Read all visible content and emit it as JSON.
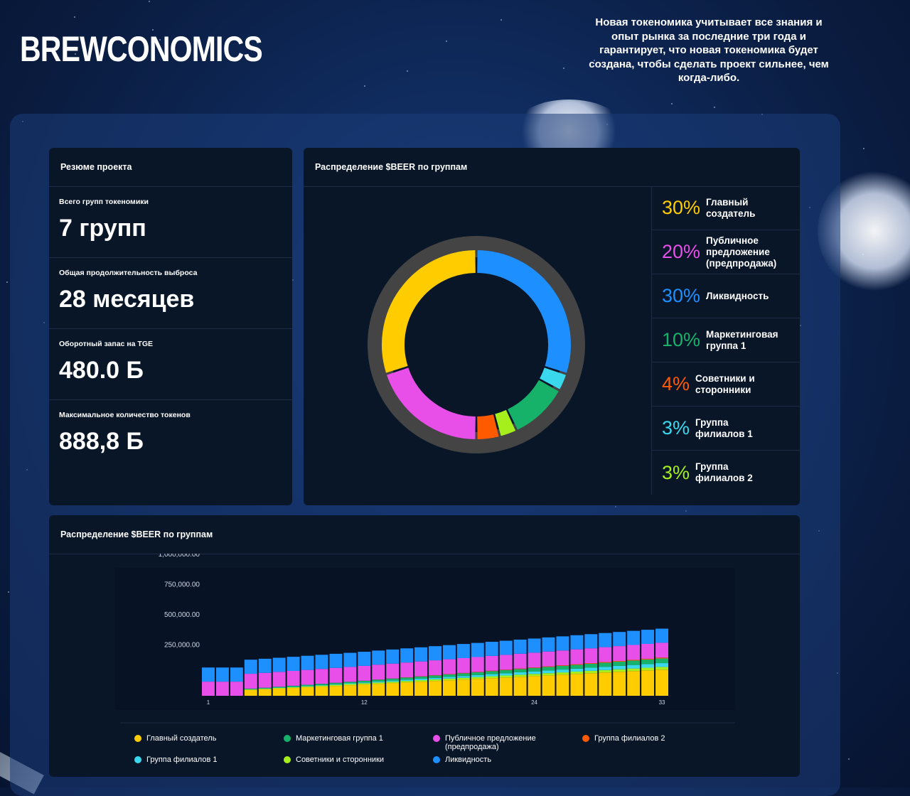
{
  "brand": {
    "logo": "BREWCONOMICS"
  },
  "tagline": "Новая токеномика учитывает все знания и опыт рынка за последние три года и гарантирует, что новая токеномика будет создана, чтобы сделать проект сильнее, чем когда-либо.",
  "summary": {
    "title": "Резюме проекта",
    "stats": [
      {
        "label": "Всего групп токеномики",
        "value": "7 групп"
      },
      {
        "label": "Общая продолжительность выброса",
        "value": "28 месяцев"
      },
      {
        "label": "Оборотный запас на TGE",
        "value": "480.0 Б"
      },
      {
        "label": "Максимальное количество токенов",
        "value": "888,8 Б"
      }
    ]
  },
  "distribution": {
    "title": "Распределение $BEER по группам",
    "groups": [
      {
        "pct": "30%",
        "name": "Главный создатель",
        "color": "#ffcc00"
      },
      {
        "pct": "20%",
        "name": "Публичное предложение (предпродажа)",
        "color": "#e84fe8"
      },
      {
        "pct": "30%",
        "name": "Ликвидность",
        "color": "#1e8fff"
      },
      {
        "pct": "10%",
        "name": "Маркетинговая группа 1",
        "color": "#17b26a"
      },
      {
        "pct": "4%",
        "name": "Советники и сторонники",
        "color": "#ff5a00"
      },
      {
        "pct": "3%",
        "name": "Группа филиалов 1",
        "color": "#3ad8ec"
      },
      {
        "pct": "3%",
        "name": "Группа филиалов 2",
        "color": "#a6ee1c"
      }
    ]
  },
  "bar_card": {
    "title": "Распределение $BEER по группам"
  },
  "bottom_legend": [
    {
      "name": "Главный создатель",
      "color": "#ffcc00"
    },
    {
      "name": "Маркетинговая группа 1",
      "color": "#17b26a"
    },
    {
      "name": "Публичное предложение (предпродажа)",
      "color": "#e84fe8"
    },
    {
      "name": "Группа филиалов 2",
      "color": "#ff5a00"
    },
    {
      "name": "Группа филиалов 1",
      "color": "#3ad8ec"
    },
    {
      "name": "Советники и сторонники",
      "color": "#a6ee1c"
    },
    {
      "name": "Ликвидность",
      "color": "#1e8fff"
    }
  ],
  "chart_data": [
    {
      "type": "pie",
      "variant": "donut",
      "slices": [
        {
          "label": "Ликвидность",
          "value": 30,
          "color": "#1e8fff"
        },
        {
          "label": "Группа филиалов 1",
          "value": 3,
          "color": "#3ad8ec"
        },
        {
          "label": "Маркетинговая группа 1",
          "value": 10,
          "color": "#17b26a"
        },
        {
          "label": "Группа филиалов 2",
          "value": 3,
          "color": "#a6ee1c"
        },
        {
          "label": "Советники и сторонники",
          "value": 4,
          "color": "#ff5a00"
        },
        {
          "label": "Публичное предложение (предпродажа)",
          "value": 20,
          "color": "#e84fe8"
        },
        {
          "label": "Главный создатель",
          "value": 30,
          "color": "#ffcc00"
        }
      ]
    },
    {
      "type": "bar",
      "stacked": true,
      "x": [
        1,
        2,
        3,
        4,
        5,
        6,
        7,
        8,
        9,
        10,
        11,
        12,
        13,
        14,
        15,
        16,
        17,
        18,
        19,
        20,
        21,
        22,
        23,
        24,
        25,
        26,
        27,
        28,
        29,
        30,
        31,
        32,
        33
      ],
      "xticks": [
        "1",
        "12",
        "24",
        "33"
      ],
      "yticks": [
        "250,000.00",
        "500,000.00",
        "750,000.00",
        "1,000,000.00"
      ],
      "ylim": [
        0,
        1000000
      ],
      "series": [
        {
          "name": "Главный создатель",
          "color": "#ffcc00",
          "values": [
            0,
            0,
            0,
            80000,
            90000,
            100000,
            110000,
            120000,
            130000,
            140000,
            150000,
            160000,
            170000,
            180000,
            190000,
            200000,
            210000,
            220000,
            230000,
            240000,
            250000,
            260000,
            270000,
            280000,
            290000,
            300000,
            310000,
            320000,
            330000,
            340000,
            350000,
            360000,
            370000
          ]
        },
        {
          "name": "Советники и сторонники",
          "color": "#a6ee1c",
          "values": [
            0,
            0,
            0,
            10000,
            10000,
            11000,
            12000,
            13000,
            14000,
            15000,
            16000,
            17000,
            18000,
            19000,
            20000,
            21000,
            22000,
            23000,
            24000,
            25000,
            26000,
            27000,
            28000,
            29000,
            30000,
            31000,
            32000,
            33000,
            34000,
            35000,
            36000,
            37000,
            38000
          ]
        },
        {
          "name": "Группа филиалов 1",
          "color": "#3ad8ec",
          "values": [
            0,
            0,
            0,
            3000,
            4000,
            5000,
            6000,
            7000,
            8000,
            9000,
            10000,
            12000,
            14000,
            16000,
            18000,
            20000,
            22000,
            24000,
            26000,
            28000,
            30000,
            32000,
            34000,
            36000,
            38000,
            40000,
            42000,
            44000,
            46000,
            48000,
            50000,
            52000,
            54000
          ]
        },
        {
          "name": "Маркетинговая группа 1",
          "color": "#17b26a",
          "values": [
            0,
            0,
            0,
            8000,
            10000,
            12000,
            14000,
            16000,
            18000,
            20000,
            22000,
            24000,
            26000,
            28000,
            30000,
            32000,
            34000,
            36000,
            38000,
            40000,
            42000,
            44000,
            46000,
            48000,
            50000,
            52000,
            54000,
            56000,
            58000,
            60000,
            62000,
            64000,
            66000
          ]
        },
        {
          "name": "Группа филиалов 2",
          "color": "#ff5a00",
          "values": [
            0,
            0,
            0,
            0,
            0,
            0,
            0,
            0,
            0,
            0,
            0,
            0,
            2000,
            2000,
            3000,
            3000,
            4000,
            4000,
            5000,
            5000,
            6000,
            6000,
            7000,
            7000,
            8000,
            8000,
            9000,
            9000,
            10000,
            10000,
            11000,
            11000,
            12000
          ]
        },
        {
          "name": "Публичное предложение (предпродажа)",
          "color": "#e84fe8",
          "values": [
            200000,
            200000,
            200000,
            210000,
            210000,
            210000,
            210000,
            210000,
            210000,
            210000,
            210000,
            210000,
            210000,
            210000,
            210000,
            210000,
            210000,
            210000,
            210000,
            210000,
            210000,
            210000,
            210000,
            210000,
            210000,
            210000,
            210000,
            210000,
            210000,
            210000,
            210000,
            210000,
            210000
          ]
        },
        {
          "name": "Ликвидность",
          "color": "#1e8fff",
          "values": [
            200000,
            200000,
            200000,
            200000,
            200000,
            200000,
            200000,
            200000,
            200000,
            200000,
            200000,
            200000,
            200000,
            200000,
            200000,
            200000,
            200000,
            200000,
            200000,
            200000,
            200000,
            200000,
            200000,
            200000,
            200000,
            200000,
            200000,
            200000,
            200000,
            200000,
            200000,
            200000,
            200000
          ]
        }
      ]
    }
  ]
}
